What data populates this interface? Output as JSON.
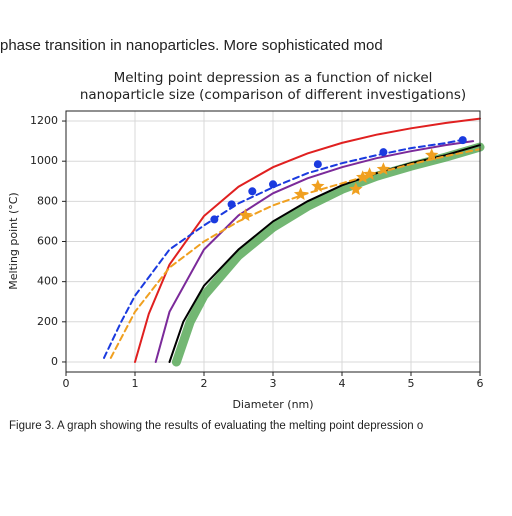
{
  "document": {
    "top_text": "phase transition in nanoparticles. More sophisticated mod",
    "caption": "Figure 3. A graph showing the results of evaluating the melting point depression o"
  },
  "chart_data": {
    "type": "line",
    "title": [
      "Melting point depression as a function of nickel",
      "nanoparticle size (comparison of different investigations)"
    ],
    "x_label": "Diameter (nm)",
    "y_label": "Melting point (°C)",
    "xlim": [
      0,
      6
    ],
    "ylim": [
      -50,
      1250
    ],
    "xticks": [
      0,
      1,
      2,
      3,
      4,
      5,
      6
    ],
    "yticks": [
      0,
      200,
      400,
      600,
      800,
      1000,
      1200
    ],
    "grid": true,
    "series": [
      {
        "color": "#5aaa5a",
        "style": "band",
        "x": [
          1.6,
          1.8,
          2,
          2.5,
          3,
          3.5,
          4,
          4.5,
          5,
          5.5,
          6
        ],
        "values": [
          0,
          200,
          330,
          530,
          670,
          775,
          860,
          925,
          975,
          1020,
          1070
        ]
      },
      {
        "color": "#000000",
        "style": "solid",
        "x": [
          1.5,
          1.7,
          2,
          2.5,
          3,
          3.5,
          4,
          4.5,
          5,
          5.5,
          6
        ],
        "values": [
          0,
          200,
          380,
          560,
          700,
          800,
          880,
          940,
          990,
          1030,
          1080
        ]
      },
      {
        "color": "#e02020",
        "style": "solid",
        "x": [
          1,
          1.2,
          1.5,
          2,
          2.5,
          3,
          3.5,
          4,
          4.5,
          5,
          5.5,
          6
        ],
        "values": [
          0,
          240,
          485,
          727,
          873,
          970,
          1039,
          1091,
          1132,
          1164,
          1190,
          1212
        ]
      },
      {
        "color": "#7b2a9a",
        "style": "solid",
        "x": [
          1.3,
          1.5,
          2,
          2.5,
          3,
          3.5,
          4,
          4.5,
          5,
          5.5,
          5.9
        ],
        "values": [
          0,
          250,
          560,
          730,
          840,
          915,
          970,
          1015,
          1050,
          1080,
          1100
        ]
      },
      {
        "color": "#f0a020",
        "style": "dashed",
        "x": [
          0.65,
          1,
          1.5,
          2,
          2.5,
          3,
          3.5,
          4,
          4.5,
          5,
          5.5,
          6
        ],
        "values": [
          20,
          250,
          470,
          600,
          700,
          780,
          840,
          890,
          940,
          985,
          1025,
          1060
        ]
      },
      {
        "color": "#1a3adf",
        "style": "dashed",
        "x": [
          0.55,
          0.8,
          1,
          1.5,
          2,
          2.5,
          3,
          3.5,
          4,
          4.5,
          5,
          5.5,
          5.8
        ],
        "values": [
          20,
          200,
          330,
          560,
          680,
          790,
          870,
          940,
          990,
          1030,
          1065,
          1090,
          1110
        ]
      },
      {
        "color": "#1a3adf",
        "style": "none",
        "marker": "circle",
        "x": [
          2.15,
          2.4,
          2.7,
          3.0,
          3.65,
          4.6,
          5.75
        ],
        "values": [
          710,
          785,
          850,
          885,
          985,
          1045,
          1105
        ]
      },
      {
        "color": "#f0a020",
        "style": "none",
        "marker": "star",
        "x": [
          2.6,
          3.4,
          3.65,
          4.2,
          4.3,
          4.4,
          4.6,
          5.3
        ],
        "values": [
          730,
          835,
          875,
          860,
          920,
          935,
          960,
          1030
        ]
      }
    ]
  }
}
